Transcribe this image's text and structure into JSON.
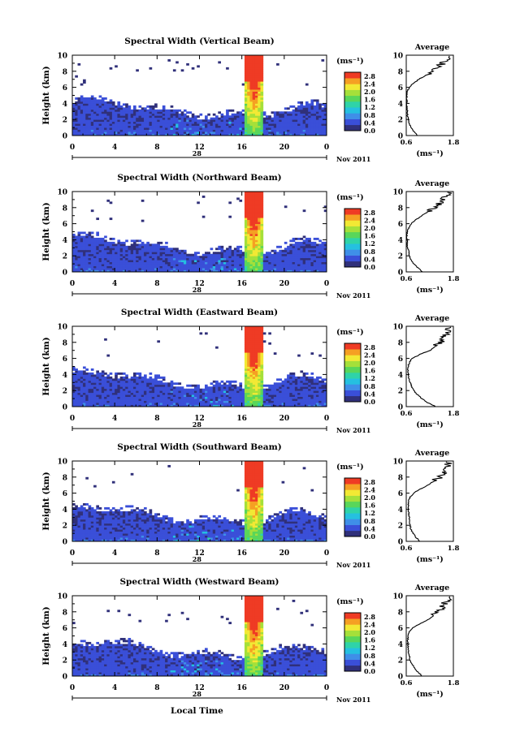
{
  "figure": {
    "colorbar_unit": "(ms⁻¹)",
    "colorbar_ticks": [
      "0.0",
      "0.4",
      "0.8",
      "1.2",
      "1.6",
      "2.0",
      "2.4",
      "2.8"
    ],
    "month_label": "Nov 2011",
    "day_label": "28",
    "x_label": "Local Time",
    "y_label": "Height (km)",
    "avg_title": "Average",
    "avg_unit": "(ms⁻¹)"
  },
  "chart_data": [
    {
      "type": "heatmap",
      "title": "Spectral Width (Vertical Beam)",
      "ylabel": "Height (km)",
      "x_ticks": [
        "0",
        "4",
        "8",
        "12",
        "16",
        "20",
        "0"
      ],
      "y_ticks": [
        "0",
        "2",
        "4",
        "6",
        "8",
        "10"
      ],
      "xlim": [
        0,
        24
      ],
      "ylim": [
        0,
        10
      ],
      "colorbar_range": [
        0,
        3.0
      ],
      "colors": [
        "#30307a",
        "#3a4fd8",
        "#3f8fe8",
        "#25c0e0",
        "#2fd3a8",
        "#59d65a",
        "#a5e03a",
        "#f2e934",
        "#f5a023",
        "#ef3b24"
      ],
      "avg": {
        "xlim": [
          0.6,
          1.8
        ],
        "x_ticks": [
          "0.6",
          "1.8"
        ],
        "y_ticks": [
          "0",
          "2",
          "4",
          "6",
          "8",
          "10"
        ],
        "profile": [
          [
            0,
            0.88
          ],
          [
            0.5,
            0.8
          ],
          [
            1,
            0.72
          ],
          [
            1.5,
            0.68
          ],
          [
            2,
            0.66
          ],
          [
            2.5,
            0.63
          ],
          [
            3,
            0.63
          ],
          [
            3.5,
            0.61
          ],
          [
            4,
            0.61
          ],
          [
            4.5,
            0.61
          ],
          [
            5,
            0.62
          ],
          [
            5.5,
            0.63
          ],
          [
            6,
            0.68
          ],
          [
            6.5,
            0.78
          ],
          [
            7,
            0.92
          ],
          [
            7.5,
            1.1
          ],
          [
            8,
            1.28
          ],
          [
            8.5,
            1.38
          ],
          [
            9,
            1.55
          ],
          [
            9.5,
            1.62
          ],
          [
            10,
            1.7
          ]
        ]
      }
    },
    {
      "type": "heatmap",
      "title": "Spectral Width (Northward Beam)",
      "ylabel": "Height (km)",
      "x_ticks": [
        "0",
        "4",
        "8",
        "12",
        "16",
        "20",
        "0"
      ],
      "y_ticks": [
        "0",
        "2",
        "4",
        "6",
        "8",
        "10"
      ],
      "xlim": [
        0,
        24
      ],
      "ylim": [
        0,
        10
      ],
      "colorbar_range": [
        0,
        3.0
      ],
      "avg": {
        "xlim": [
          0.6,
          1.8
        ],
        "x_ticks": [
          "0.6",
          "1.8"
        ],
        "y_ticks": [
          "0",
          "2",
          "4",
          "6",
          "8",
          "10"
        ],
        "profile": [
          [
            0,
            1.0
          ],
          [
            0.5,
            0.9
          ],
          [
            1,
            0.8
          ],
          [
            1.5,
            0.72
          ],
          [
            2,
            0.68
          ],
          [
            2.5,
            0.66
          ],
          [
            3,
            0.64
          ],
          [
            3.5,
            0.62
          ],
          [
            4,
            0.62
          ],
          [
            4.5,
            0.62
          ],
          [
            5,
            0.63
          ],
          [
            5.5,
            0.66
          ],
          [
            6,
            0.72
          ],
          [
            6.5,
            0.85
          ],
          [
            7,
            1.0
          ],
          [
            7.5,
            1.15
          ],
          [
            8,
            1.3
          ],
          [
            8.5,
            1.45
          ],
          [
            9,
            1.55
          ],
          [
            9.5,
            1.65
          ],
          [
            10,
            1.7
          ]
        ]
      }
    },
    {
      "type": "heatmap",
      "title": "Spectral Width (Eastward Beam)",
      "ylabel": "Height (km)",
      "x_ticks": [
        "0",
        "4",
        "8",
        "12",
        "16",
        "20",
        "0"
      ],
      "y_ticks": [
        "0",
        "2",
        "4",
        "6",
        "8",
        "10"
      ],
      "xlim": [
        0,
        24
      ],
      "ylim": [
        0,
        10
      ],
      "colorbar_range": [
        0,
        3.0
      ],
      "avg": {
        "xlim": [
          0.6,
          1.8
        ],
        "x_ticks": [
          "0.6",
          "1.8"
        ],
        "y_ticks": [
          "0",
          "2",
          "4",
          "6",
          "8",
          "10"
        ],
        "profile": [
          [
            0,
            1.35
          ],
          [
            0.5,
            1.15
          ],
          [
            1,
            1.0
          ],
          [
            1.5,
            0.88
          ],
          [
            2,
            0.8
          ],
          [
            2.5,
            0.74
          ],
          [
            3,
            0.7
          ],
          [
            3.5,
            0.67
          ],
          [
            4,
            0.65
          ],
          [
            4.5,
            0.64
          ],
          [
            5,
            0.65
          ],
          [
            5.5,
            0.68
          ],
          [
            6,
            0.75
          ],
          [
            6.5,
            0.95
          ],
          [
            7,
            1.2
          ],
          [
            7.5,
            1.35
          ],
          [
            8,
            1.45
          ],
          [
            8.5,
            1.55
          ],
          [
            9,
            1.6
          ],
          [
            9.5,
            1.68
          ],
          [
            10,
            1.72
          ]
        ]
      }
    },
    {
      "type": "heatmap",
      "title": "Spectral Width (Southward Beam)",
      "ylabel": "Height (km)",
      "x_ticks": [
        "0",
        "4",
        "8",
        "12",
        "16",
        "20",
        "0"
      ],
      "y_ticks": [
        "0",
        "2",
        "4",
        "6",
        "8",
        "10"
      ],
      "xlim": [
        0,
        24
      ],
      "ylim": [
        0,
        10
      ],
      "colorbar_range": [
        0,
        3.0
      ],
      "avg": {
        "xlim": [
          0.6,
          1.8
        ],
        "x_ticks": [
          "0.6",
          "1.8"
        ],
        "y_ticks": [
          "0",
          "2",
          "4",
          "6",
          "8",
          "10"
        ],
        "profile": [
          [
            0,
            0.95
          ],
          [
            0.5,
            0.85
          ],
          [
            1,
            0.78
          ],
          [
            1.5,
            0.72
          ],
          [
            2,
            0.7
          ],
          [
            2.5,
            0.68
          ],
          [
            3,
            0.68
          ],
          [
            3.5,
            0.66
          ],
          [
            4,
            0.66
          ],
          [
            4.5,
            0.65
          ],
          [
            5,
            0.66
          ],
          [
            5.5,
            0.7
          ],
          [
            6,
            0.78
          ],
          [
            6.5,
            0.95
          ],
          [
            7,
            1.15
          ],
          [
            7.5,
            1.3
          ],
          [
            8,
            1.45
          ],
          [
            8.5,
            1.55
          ],
          [
            9,
            1.6
          ],
          [
            9.5,
            1.65
          ],
          [
            10,
            1.7
          ]
        ]
      }
    },
    {
      "type": "heatmap",
      "title": "Spectral Width (Westward Beam)",
      "ylabel": "Height (km)",
      "x_ticks": [
        "0",
        "4",
        "8",
        "12",
        "16",
        "20",
        "0"
      ],
      "y_ticks": [
        "0",
        "2",
        "4",
        "6",
        "8",
        "10"
      ],
      "xlim": [
        0,
        24
      ],
      "ylim": [
        0,
        10
      ],
      "colorbar_range": [
        0,
        3.0
      ],
      "avg": {
        "xlim": [
          0.6,
          1.8
        ],
        "x_ticks": [
          "0.6",
          "1.8"
        ],
        "y_ticks": [
          "0",
          "2",
          "4",
          "6",
          "8",
          "10"
        ],
        "profile": [
          [
            0,
            1.0
          ],
          [
            0.5,
            0.9
          ],
          [
            1,
            0.82
          ],
          [
            1.5,
            0.75
          ],
          [
            2,
            0.7
          ],
          [
            2.5,
            0.68
          ],
          [
            3,
            0.66
          ],
          [
            3.5,
            0.65
          ],
          [
            4,
            0.64
          ],
          [
            4.5,
            0.64
          ],
          [
            5,
            0.65
          ],
          [
            5.5,
            0.68
          ],
          [
            6,
            0.75
          ],
          [
            6.5,
            0.95
          ],
          [
            7,
            1.15
          ],
          [
            7.5,
            1.3
          ],
          [
            8,
            1.42
          ],
          [
            8.5,
            1.52
          ],
          [
            9,
            1.58
          ],
          [
            9.5,
            1.65
          ],
          [
            10,
            1.7
          ]
        ]
      }
    }
  ]
}
